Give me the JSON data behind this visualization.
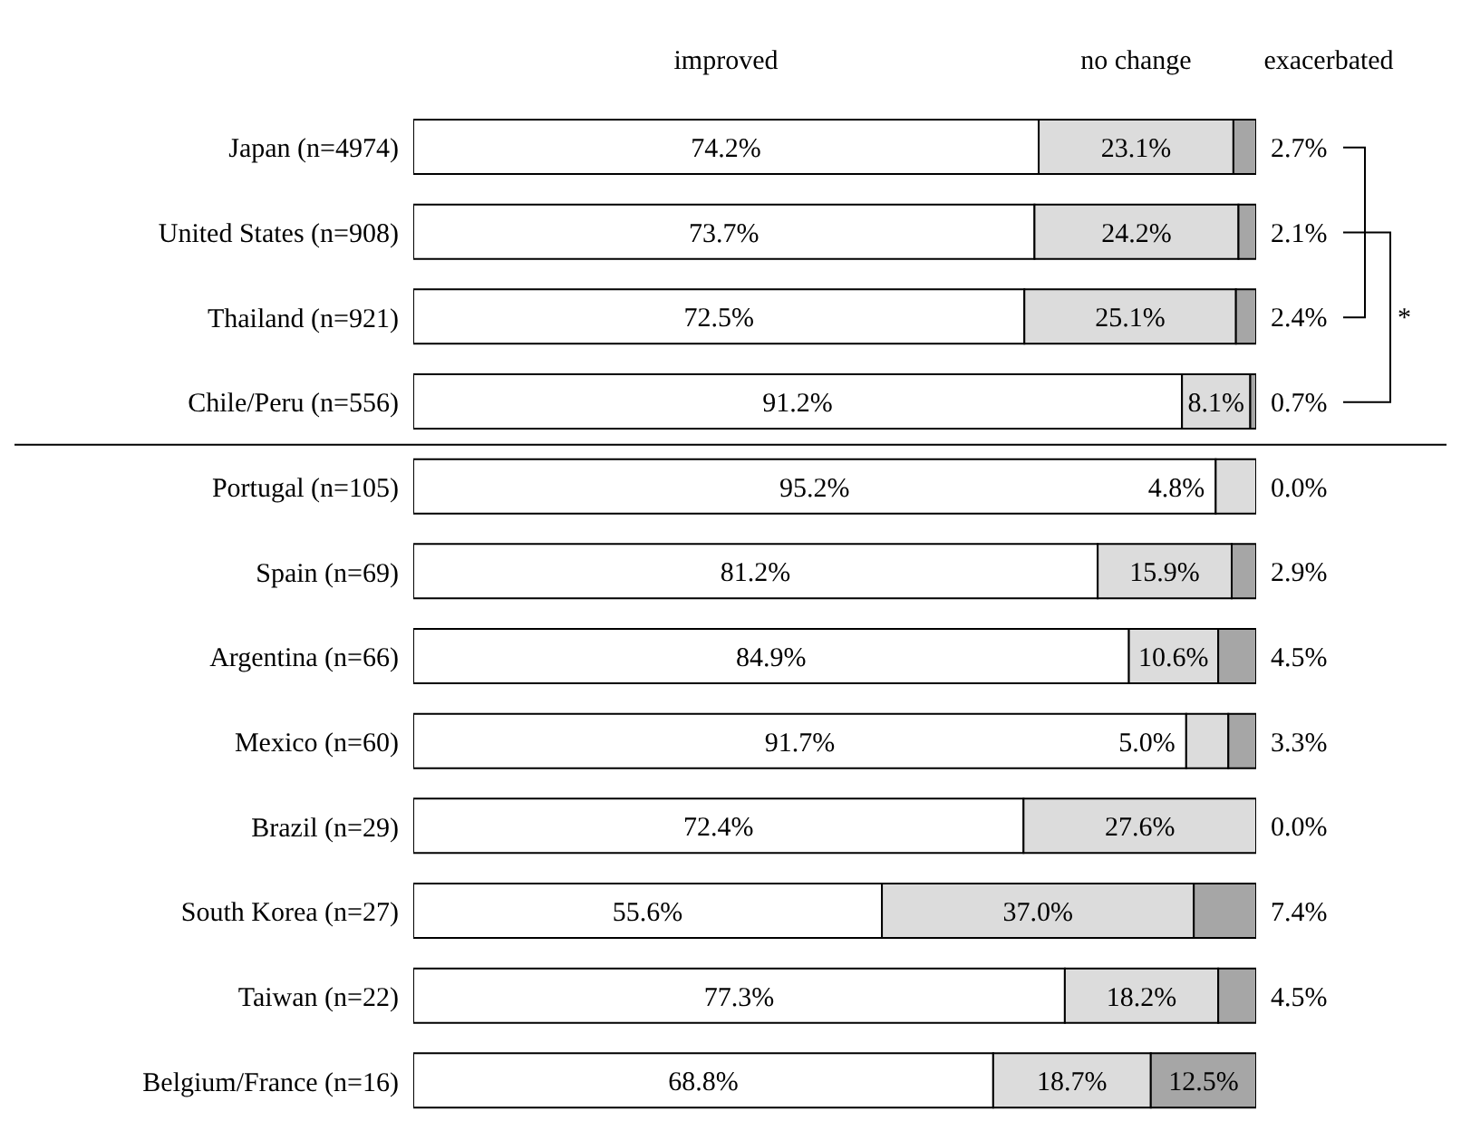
{
  "chart_data": {
    "type": "bar",
    "orientation": "horizontal",
    "stacked": true,
    "legend": "top",
    "xlim": [
      0,
      100
    ],
    "categories": [
      "Japan (n=4974)",
      "United States (n=908)",
      "Thailand (n=921)",
      "Chile/Peru (n=556)",
      "Portugal (n=105)",
      "Spain (n=69)",
      "Argentina (n=66)",
      "Mexico (n=60)",
      "Brazil (n=29)",
      "South Korea (n=27)",
      "Taiwan (n=22)",
      "Belgium/France (n=16)"
    ],
    "series": [
      {
        "name": "improved",
        "color": "#ffffff",
        "values": [
          74.2,
          73.7,
          72.5,
          91.2,
          95.2,
          81.2,
          84.9,
          91.7,
          72.4,
          55.6,
          77.3,
          68.8
        ],
        "value_labels": [
          "74.2%",
          "73.7%",
          "72.5%",
          "91.2%",
          "95.2%",
          "81.2%",
          "84.9%",
          "91.7%",
          "72.4%",
          "55.6%",
          "77.3%",
          "68.8%"
        ]
      },
      {
        "name": "no change",
        "color": "#dcdcdc",
        "values": [
          23.1,
          24.2,
          25.1,
          8.1,
          4.8,
          15.9,
          10.6,
          5.0,
          27.6,
          37.0,
          18.2,
          18.7
        ],
        "value_labels": [
          "23.1%",
          "24.2%",
          "25.1%",
          "8.1%",
          "4.8%",
          "15.9%",
          "10.6%",
          "5.0%",
          "27.6%",
          "37.0%",
          "18.2%",
          "18.7%"
        ]
      },
      {
        "name": "exacerbated",
        "color": "#a6a6a6",
        "values": [
          2.7,
          2.1,
          2.4,
          0.7,
          0.0,
          2.9,
          4.5,
          3.3,
          0.0,
          7.4,
          4.5,
          12.5
        ],
        "value_labels": [
          "2.7%",
          "2.1%",
          "2.4%",
          "0.7%",
          "0.0%",
          "2.9%",
          "4.5%",
          "3.3%",
          "0.0%",
          "7.4%",
          "4.5%",
          "12.5%"
        ]
      }
    ],
    "annotations": [
      "*"
    ]
  }
}
